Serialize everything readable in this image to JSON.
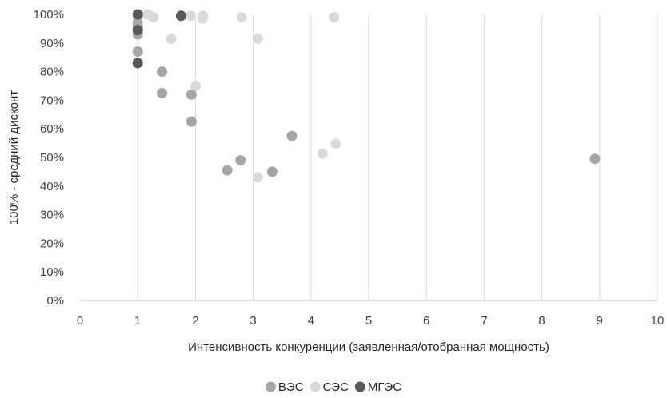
{
  "chart_data": {
    "type": "scatter",
    "title": "",
    "xlabel": "Интенсивность конкуренции (заявленная/отобранная мощность)",
    "ylabel": "100% - средний дисконт",
    "xlim": [
      0,
      10
    ],
    "ylim": [
      0,
      1
    ],
    "xticks": [
      0,
      1,
      2,
      3,
      4,
      5,
      6,
      7,
      8,
      9,
      10
    ],
    "xtick_labels": [
      "0",
      "1",
      "2",
      "3",
      "4",
      "5",
      "6",
      "7",
      "8",
      "9",
      "10"
    ],
    "yticks": [
      0,
      0.1,
      0.2,
      0.3,
      0.4,
      0.5,
      0.6,
      0.7,
      0.8,
      0.9,
      1.0
    ],
    "ytick_labels": [
      "0%",
      "10%",
      "20%",
      "30%",
      "40%",
      "50%",
      "60%",
      "70%",
      "80%",
      "90%",
      "100%"
    ],
    "grid": "vertical",
    "legend_position": "bottom",
    "series": [
      {
        "name": "ВЭС",
        "color": "#a6a6a6",
        "points": [
          {
            "x": 1.0,
            "y": 0.87
          },
          {
            "x": 1.0,
            "y": 0.93
          },
          {
            "x": 1.0,
            "y": 0.955
          },
          {
            "x": 1.0,
            "y": 0.97
          },
          {
            "x": 1.42,
            "y": 0.8
          },
          {
            "x": 1.42,
            "y": 0.725
          },
          {
            "x": 1.93,
            "y": 0.72
          },
          {
            "x": 1.93,
            "y": 0.625
          },
          {
            "x": 2.55,
            "y": 0.455
          },
          {
            "x": 2.78,
            "y": 0.49
          },
          {
            "x": 3.33,
            "y": 0.45
          },
          {
            "x": 3.67,
            "y": 0.575
          },
          {
            "x": 8.92,
            "y": 0.495
          }
        ]
      },
      {
        "name": "СЭС",
        "color": "#d9d9d9",
        "points": [
          {
            "x": 1.0,
            "y": 0.99
          },
          {
            "x": 1.17,
            "y": 1.0
          },
          {
            "x": 1.27,
            "y": 0.99
          },
          {
            "x": 1.58,
            "y": 0.915
          },
          {
            "x": 1.92,
            "y": 0.995
          },
          {
            "x": 2.0,
            "y": 0.75
          },
          {
            "x": 2.12,
            "y": 0.985
          },
          {
            "x": 2.13,
            "y": 0.995
          },
          {
            "x": 2.8,
            "y": 0.99
          },
          {
            "x": 3.08,
            "y": 0.915
          },
          {
            "x": 3.08,
            "y": 0.43
          },
          {
            "x": 4.2,
            "y": 0.513
          },
          {
            "x": 4.4,
            "y": 0.99
          },
          {
            "x": 4.43,
            "y": 0.548
          }
        ]
      },
      {
        "name": "МГЭС",
        "color": "#595959",
        "points": [
          {
            "x": 1.0,
            "y": 1.0
          },
          {
            "x": 1.0,
            "y": 0.945
          },
          {
            "x": 1.0,
            "y": 0.83
          },
          {
            "x": 1.75,
            "y": 0.995
          }
        ]
      }
    ]
  }
}
